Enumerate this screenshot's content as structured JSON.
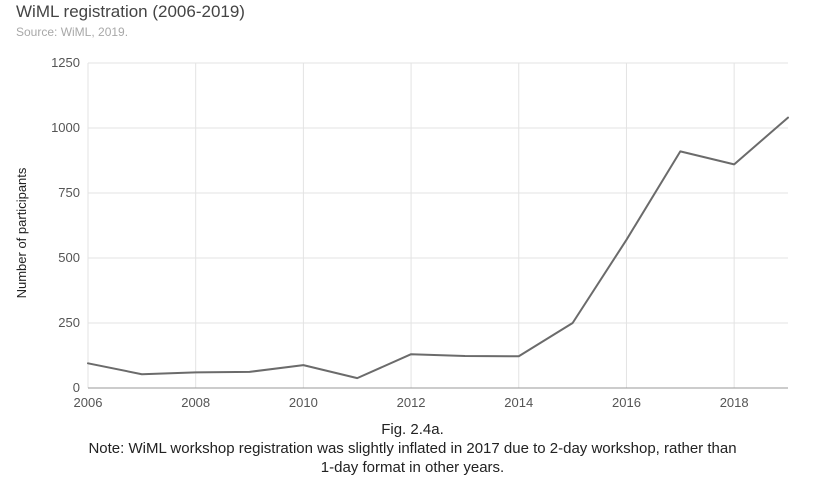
{
  "header": {
    "title": "WiML registration (2006-2019)",
    "subtitle": "Source: WiML, 2019."
  },
  "caption": {
    "fig_label": "Fig. 2.4a.",
    "note_line1": "Note: WiML workshop registration was slightly inflated in 2017 due to 2-day workshop, rather than",
    "note_line2": "1-day format in other years."
  },
  "colors": {
    "line": "#6b6b6b",
    "grid": "#e3e3e3",
    "axis": "#999999"
  },
  "chart_data": {
    "type": "line",
    "title": "WiML registration (2006-2019)",
    "subtitle": "Source: WiML, 2019.",
    "xlabel": "",
    "ylabel": "Number of participants",
    "x": [
      2006,
      2007,
      2008,
      2009,
      2010,
      2011,
      2012,
      2013,
      2014,
      2015,
      2016,
      2017,
      2018,
      2019
    ],
    "series": [
      {
        "values": [
          95,
          53,
          60,
          62,
          88,
          38,
          130,
          123,
          122,
          250,
          570,
          910,
          860,
          1040
        ]
      }
    ],
    "xlim": [
      2006,
      2019
    ],
    "ylim": [
      0,
      1250
    ],
    "xticks": [
      2006,
      2008,
      2010,
      2012,
      2014,
      2016,
      2018
    ],
    "yticks": [
      0,
      250,
      500,
      750,
      1000,
      1250
    ],
    "grid": true,
    "legend": "none"
  }
}
